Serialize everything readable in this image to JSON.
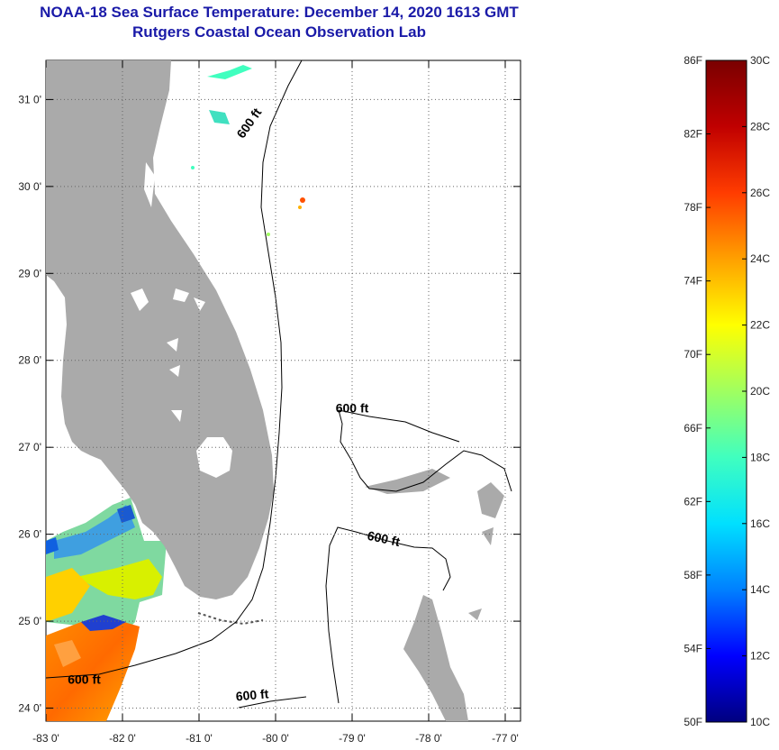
{
  "header": {
    "title": "NOAA-18 Sea Surface Temperature:  December 14, 2020 1613 GMT",
    "subtitle": "Rutgers Coastal Ocean Observation Lab"
  },
  "map": {
    "lon_range": [
      -83,
      -76.8
    ],
    "lat_range": [
      23.85,
      31.45
    ],
    "lon_ticks": [
      {
        "value": -83,
        "label": "-83 0'"
      },
      {
        "value": -82,
        "label": "-82 0'"
      },
      {
        "value": -81,
        "label": "-81 0'"
      },
      {
        "value": -80,
        "label": "-80 0'"
      },
      {
        "value": -79,
        "label": "-79 0'"
      },
      {
        "value": -78,
        "label": "-78 0'"
      },
      {
        "value": -77,
        "label": "-77 0'"
      }
    ],
    "lat_ticks": [
      {
        "value": 24,
        "label": "24 0'"
      },
      {
        "value": 25,
        "label": "25 0'"
      },
      {
        "value": 26,
        "label": "26 0'"
      },
      {
        "value": 27,
        "label": "27 0'"
      },
      {
        "value": 28,
        "label": "28 0'"
      },
      {
        "value": 29,
        "label": "29 0'"
      },
      {
        "value": 30,
        "label": "30 0'"
      },
      {
        "value": 31,
        "label": "31 0'"
      }
    ],
    "isobath_labels": [
      {
        "text": "600 ft",
        "lon": -80.3,
        "lat": 30.7,
        "rotate": -55
      },
      {
        "text": "600 ft",
        "lon": -79.0,
        "lat": 27.4,
        "rotate": 0
      },
      {
        "text": "600 ft",
        "lon": -78.6,
        "lat": 25.9,
        "rotate": 12
      },
      {
        "text": "600 ft",
        "lon": -82.5,
        "lat": 24.28,
        "rotate": 0
      },
      {
        "text": "600 ft",
        "lon": -80.3,
        "lat": 24.1,
        "rotate": -5
      }
    ],
    "land_color": "#aaaaaa",
    "background_color": "#ffffff"
  },
  "colorbar": {
    "min_c": 10,
    "max_c": 30,
    "celsius_labels": [
      {
        "value": 30,
        "label": "30C"
      },
      {
        "value": 28,
        "label": "28C"
      },
      {
        "value": 26,
        "label": "26C"
      },
      {
        "value": 24,
        "label": "24C"
      },
      {
        "value": 22,
        "label": "22C"
      },
      {
        "value": 20,
        "label": "20C"
      },
      {
        "value": 18,
        "label": "18C"
      },
      {
        "value": 16,
        "label": "16C"
      },
      {
        "value": 14,
        "label": "14C"
      },
      {
        "value": 12,
        "label": "12C"
      },
      {
        "value": 10,
        "label": "10C"
      }
    ],
    "fahrenheit_labels": [
      {
        "value": 86,
        "label": "86F"
      },
      {
        "value": 82,
        "label": "82F"
      },
      {
        "value": 78,
        "label": "78F"
      },
      {
        "value": 74,
        "label": "74F"
      },
      {
        "value": 70,
        "label": "70F"
      },
      {
        "value": 66,
        "label": "66F"
      },
      {
        "value": 62,
        "label": "62F"
      },
      {
        "value": 58,
        "label": "58F"
      },
      {
        "value": 54,
        "label": "54F"
      },
      {
        "value": 50,
        "label": "50F"
      }
    ],
    "gradient_stops": [
      "#00007f",
      "#0000ff",
      "#0080ff",
      "#00e0ff",
      "#40ffbf",
      "#a0ff60",
      "#ffff00",
      "#ffa000",
      "#ff3c00",
      "#c00000",
      "#7a0000"
    ]
  }
}
